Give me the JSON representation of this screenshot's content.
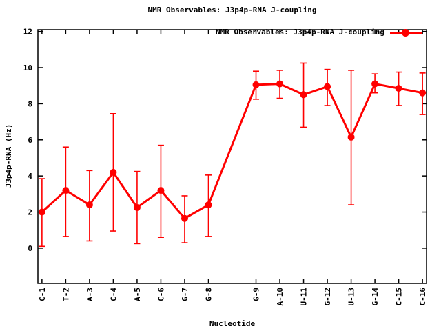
{
  "header": {
    "title": "NMR Observables: J3p4p-RNA J-coupling"
  },
  "legend": {
    "label": "NMR Observables: J3p4p-RNA J-coupling",
    "marker": "filled-circle-on-line"
  },
  "chart_data": {
    "type": "line",
    "title": "NMR Observables: J3p4p-RNA J-coupling",
    "xlabel": "Nucleotide",
    "ylabel": "J3p4p-RNA (Hz)",
    "legend_entry": "NMR Observables: J3p4p-RNA J-coupling",
    "legend_position": "top-right-inside",
    "grid": false,
    "series_color": "#ff0000",
    "border_color": "#000000",
    "categories": [
      "C-1",
      "T-2",
      "A-3",
      "C-4",
      "A-5",
      "C-6",
      "G-7",
      "G-8",
      "G-9",
      "A-10",
      "U-11",
      "G-12",
      "U-13",
      "G-14",
      "C-15",
      "C-16"
    ],
    "x_units": [
      0,
      1,
      2,
      3,
      4,
      5,
      6,
      7,
      9,
      10,
      11,
      12,
      13,
      14,
      15,
      16
    ],
    "values": [
      2.0,
      3.2,
      2.4,
      4.2,
      2.25,
      3.2,
      1.65,
      2.4,
      9.05,
      9.1,
      8.5,
      8.95,
      6.15,
      9.1,
      8.85,
      8.6
    ],
    "err_low": [
      0.1,
      0.65,
      0.4,
      0.95,
      0.25,
      0.6,
      0.3,
      0.65,
      8.25,
      8.3,
      6.7,
      7.9,
      2.4,
      8.6,
      7.9,
      7.4
    ],
    "err_high": [
      3.85,
      5.6,
      4.3,
      7.45,
      4.25,
      5.7,
      2.9,
      4.05,
      9.8,
      9.85,
      10.25,
      9.9,
      9.85,
      9.65,
      9.75,
      9.7
    ],
    "yticks": [
      0,
      2,
      4,
      6,
      8,
      10,
      12
    ],
    "ylim": [
      -1.95,
      12.1
    ],
    "xlim": [
      -0.17,
      16.17
    ]
  }
}
